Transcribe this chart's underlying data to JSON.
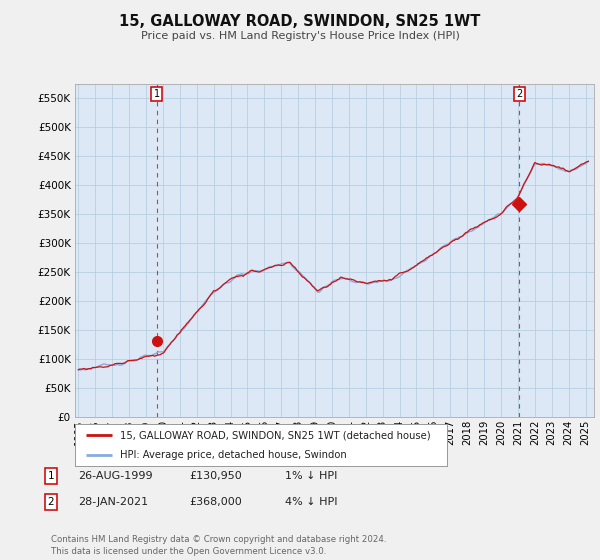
{
  "title": "15, GALLOWAY ROAD, SWINDON, SN25 1WT",
  "subtitle": "Price paid vs. HM Land Registry's House Price Index (HPI)",
  "ytick_values": [
    0,
    50000,
    100000,
    150000,
    200000,
    250000,
    300000,
    350000,
    400000,
    450000,
    500000,
    550000
  ],
  "ylim": [
    0,
    575000
  ],
  "xlim_start": 1994.8,
  "xlim_end": 2025.5,
  "hpi_color": "#88aadd",
  "price_color": "#cc1111",
  "bg_color": "#f0f0f0",
  "plot_bg": "#dce8f5",
  "grid_color": "#b8cfe0",
  "legend_label_price": "15, GALLOWAY ROAD, SWINDON, SN25 1WT (detached house)",
  "legend_label_hpi": "HPI: Average price, detached house, Swindon",
  "annotation1_num": "1",
  "annotation1_date": "26-AUG-1999",
  "annotation1_price": "£130,950",
  "annotation1_hpi": "1% ↓ HPI",
  "annotation2_num": "2",
  "annotation2_date": "28-JAN-2021",
  "annotation2_price": "£368,000",
  "annotation2_hpi": "4% ↓ HPI",
  "footer": "Contains HM Land Registry data © Crown copyright and database right 2024.\nThis data is licensed under the Open Government Licence v3.0.",
  "sale1_x": 1999.65,
  "sale1_y": 130950,
  "sale2_x": 2021.08,
  "sale2_y": 368000,
  "vline1_x": 1999.65,
  "vline2_x": 2021.08
}
